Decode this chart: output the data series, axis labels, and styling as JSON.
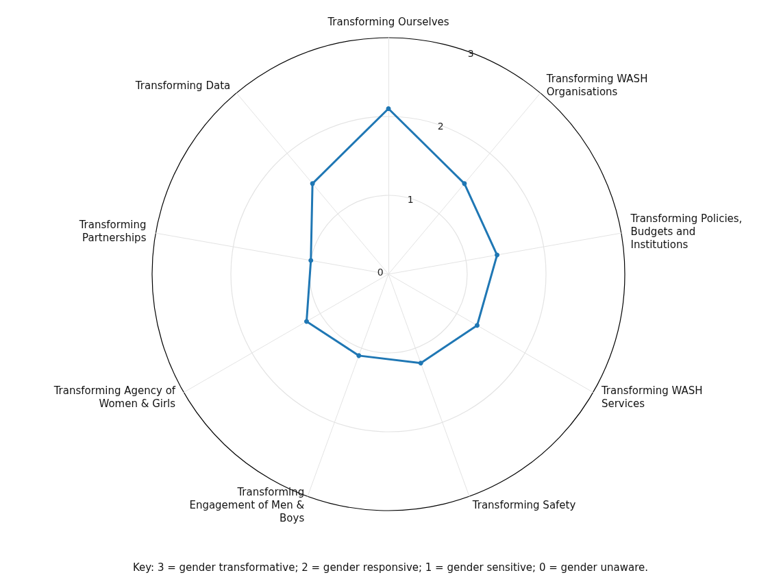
{
  "chart_data": {
    "type": "radar",
    "categories": [
      "Transforming Ourselves",
      "Transforming WASH\nOrganisations",
      "Transforming Policies,\nBudgets and\nInstitutions",
      "Transforming WASH\nServices",
      "Transforming Safety",
      "Transforming\nEngagement of Men &\nBoys",
      "Transforming Agency of\nWomen & Girls",
      "Transforming\nPartnerships",
      "Transforming Data"
    ],
    "series": [
      {
        "color": "#1f77b4",
        "values": [
          2.1,
          1.5,
          1.4,
          1.3,
          1.2,
          1.1,
          1.2,
          1.0,
          1.5
        ]
      }
    ],
    "ylim": [
      0,
      3
    ],
    "yticks": [
      0,
      1,
      2,
      3
    ],
    "grid": true,
    "marker": "circle",
    "line_style": "solid",
    "annotations": [
      "Key: 3 = gender transformative; 2 = gender responsive; 1 = gender sensitive; 0 = gender unaware."
    ]
  }
}
